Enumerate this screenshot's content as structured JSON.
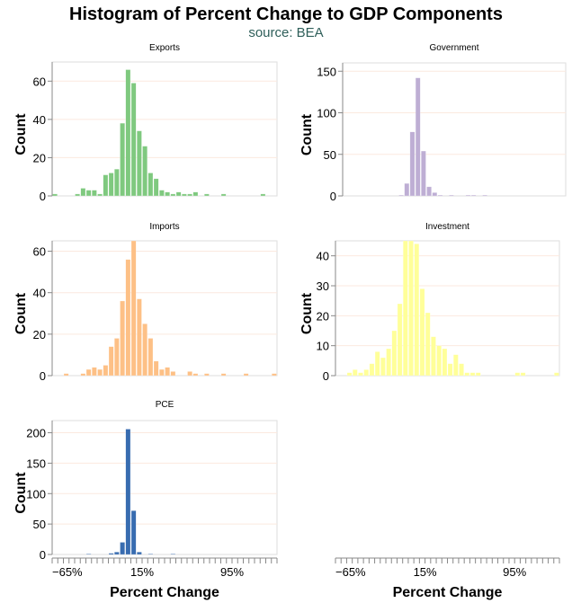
{
  "chart_data": {
    "type": "bar",
    "title": "Histogram of Percent Change to GDP Components",
    "subtitle": "source: BEA",
    "xlabel": "Percent Change",
    "ylabel": "Count",
    "bin_start": -65,
    "bin_width": 5,
    "xlim": [
      -65,
      135
    ],
    "x_ticks": [
      -65,
      15,
      95
    ],
    "x_tick_labels": [
      "−65%",
      "15%",
      "95%"
    ],
    "grid": true,
    "panels": [
      {
        "name": "Exports",
        "color": "#7fc97f",
        "ylim": [
          0,
          70
        ],
        "y_ticks": [
          0,
          20,
          40,
          60
        ],
        "counts": [
          1,
          0,
          0,
          0,
          1,
          4,
          3,
          3,
          1,
          11,
          12,
          14,
          38,
          66,
          59,
          34,
          26,
          12,
          9,
          3,
          2,
          1,
          2,
          1,
          1,
          2,
          0,
          1,
          0,
          0,
          1,
          0,
          0,
          0,
          0,
          0,
          0,
          1,
          0,
          0
        ]
      },
      {
        "name": "Government",
        "color": "#beaed4",
        "ylim": [
          0,
          160
        ],
        "y_ticks": [
          0,
          50,
          100,
          150
        ],
        "counts": [
          0,
          0,
          0,
          0,
          0,
          0,
          0,
          0,
          0,
          0,
          1,
          15,
          77,
          142,
          54,
          11,
          4,
          1,
          0,
          1,
          0,
          0,
          1,
          1,
          0,
          1,
          0,
          0,
          0,
          0,
          0,
          0,
          0,
          0,
          0,
          0,
          0,
          0,
          0,
          0
        ]
      },
      {
        "name": "Imports",
        "color": "#fdc086",
        "ylim": [
          0,
          65
        ],
        "y_ticks": [
          0,
          20,
          40,
          60
        ],
        "counts": [
          0,
          0,
          1,
          0,
          0,
          1,
          3,
          4,
          3,
          5,
          14,
          18,
          36,
          56,
          65,
          37,
          25,
          18,
          7,
          3,
          4,
          2,
          0,
          0,
          2,
          1,
          0,
          1,
          0,
          0,
          1,
          0,
          0,
          0,
          1,
          0,
          0,
          0,
          0,
          1
        ]
      },
      {
        "name": "Investment",
        "color": "#ffff99",
        "ylim": [
          0,
          45
        ],
        "y_ticks": [
          0,
          10,
          20,
          30,
          40
        ],
        "counts": [
          0,
          0,
          1,
          2,
          1,
          2,
          4,
          8,
          6,
          9,
          15,
          24,
          45,
          45,
          44,
          29,
          21,
          13,
          10,
          9,
          4,
          7,
          4,
          1,
          1,
          1,
          0,
          0,
          0,
          0,
          0,
          0,
          1,
          1,
          0,
          0,
          0,
          0,
          0,
          1
        ]
      },
      {
        "name": "PCE",
        "color": "#386cb0",
        "ylim": [
          0,
          220
        ],
        "y_ticks": [
          0,
          50,
          100,
          150,
          200
        ],
        "counts": [
          0,
          0,
          0,
          0,
          0,
          0,
          1,
          0,
          0,
          0,
          2,
          4,
          20,
          206,
          72,
          4,
          0,
          1,
          0,
          0,
          0,
          1,
          0,
          0,
          0,
          0,
          0,
          0,
          0,
          0,
          0,
          0,
          0,
          0,
          0,
          0,
          0,
          0,
          0,
          0
        ]
      }
    ]
  }
}
